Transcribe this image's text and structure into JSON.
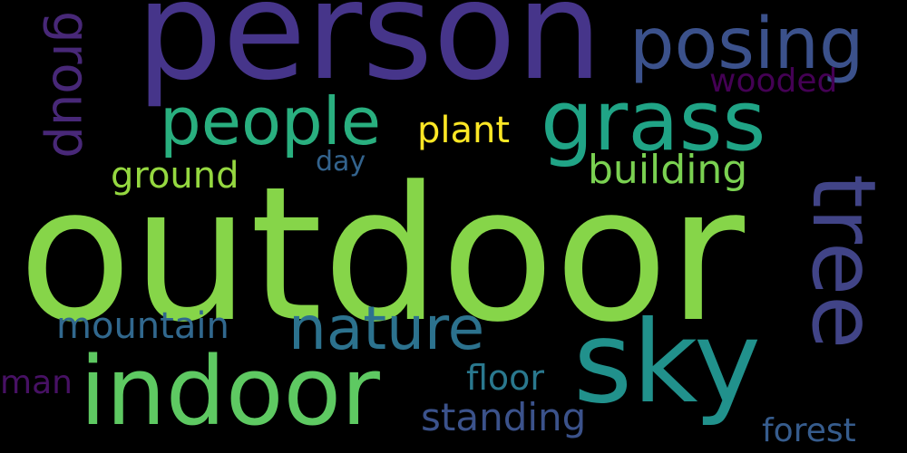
{
  "words": {
    "outdoor": {
      "text": "outdoor",
      "color": "#86d549"
    },
    "person": {
      "text": "person",
      "color": "#46358a"
    },
    "sky": {
      "text": "sky",
      "color": "#21918c"
    },
    "indoor": {
      "text": "indoor",
      "color": "#5ec962"
    },
    "tree": {
      "text": "tree",
      "color": "#414487"
    },
    "grass": {
      "text": "grass",
      "color": "#20a486"
    },
    "posing": {
      "text": "posing",
      "color": "#3b518b"
    },
    "people": {
      "text": "people",
      "color": "#29af7f"
    },
    "nature": {
      "text": "nature",
      "color": "#2c728e"
    },
    "group": {
      "text": "group",
      "color": "#482878"
    },
    "building": {
      "text": "building",
      "color": "#7ad151"
    },
    "standing": {
      "text": "standing",
      "color": "#3b528b"
    },
    "mountain": {
      "text": "mountain",
      "color": "#31688e"
    },
    "ground": {
      "text": "ground",
      "color": "#95d840"
    },
    "plant": {
      "text": "plant",
      "color": "#fde725"
    },
    "floor": {
      "text": "floor",
      "color": "#2a788e"
    },
    "forest": {
      "text": "forest",
      "color": "#365c8d"
    },
    "wooded": {
      "text": "wooded",
      "color": "#440154"
    },
    "man": {
      "text": "man",
      "color": "#471164"
    },
    "day": {
      "text": "day",
      "color": "#33638d"
    }
  },
  "background": "#000000"
}
